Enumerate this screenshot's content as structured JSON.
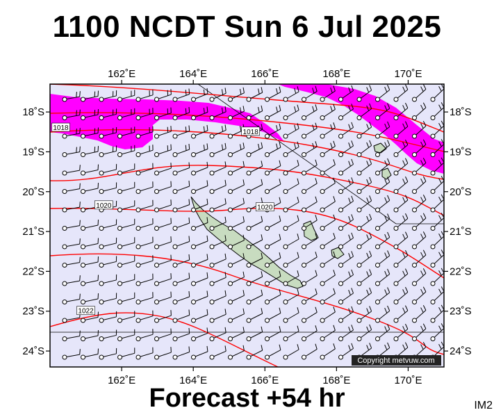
{
  "header": {
    "title": "1100 NCDT Sun 6 Jul 2025"
  },
  "footer": {
    "forecast": "Forecast +54 hr",
    "corner_tag": "IM2",
    "copyright": "Copyright metvuw.com"
  },
  "map": {
    "lon_range": [
      160.0,
      171.0
    ],
    "lat_range": [
      -24.4,
      -17.3
    ],
    "lon_ticks": [
      "162˚E",
      "164˚E",
      "166˚E",
      "168˚E",
      "170˚E"
    ],
    "lon_tick_values": [
      162,
      164,
      166,
      168,
      170
    ],
    "lat_ticks": [
      "18˚S",
      "19˚S",
      "20˚S",
      "21˚S",
      "22˚S",
      "23˚S",
      "24˚S"
    ],
    "lat_tick_values": [
      -18,
      -19,
      -20,
      -21,
      -22,
      -23,
      -24
    ],
    "colors": {
      "ocean": "#e6e6fa",
      "isobar": "#ff0000",
      "rain": "#ff00ff",
      "land": "#c8dcc0",
      "wind": "#000000"
    },
    "isobar_labels": [
      {
        "text": "1018",
        "lon": 160.3,
        "lat": -18.4
      },
      {
        "text": "1018",
        "lon": 165.6,
        "lat": -18.5
      },
      {
        "text": "1020",
        "lon": 161.5,
        "lat": -20.35
      },
      {
        "text": "1020",
        "lon": 166.0,
        "lat": -20.4
      },
      {
        "text": "1022",
        "lon": 161.0,
        "lat": -23.0
      }
    ]
  }
}
